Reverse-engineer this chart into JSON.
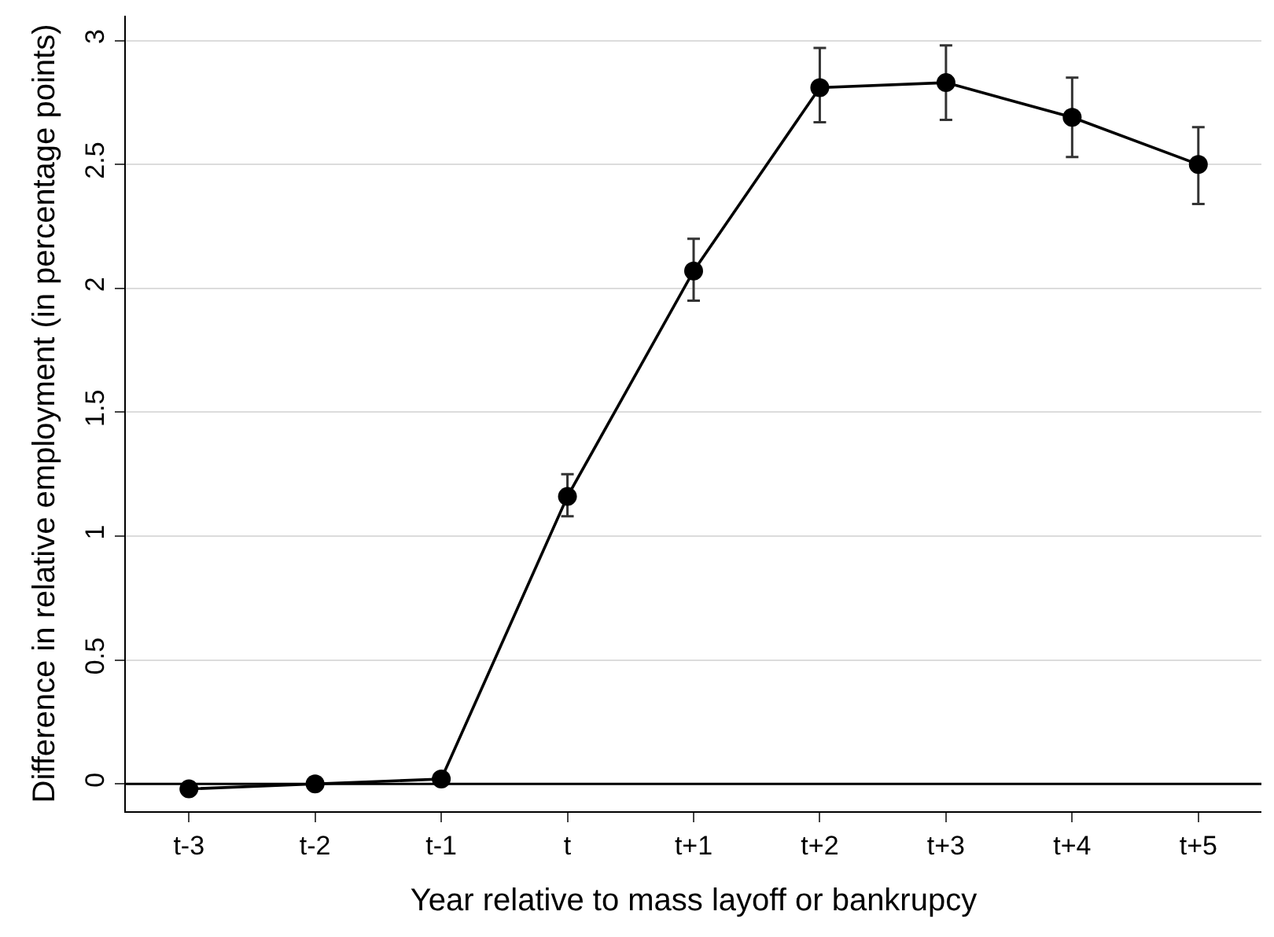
{
  "chart_data": {
    "type": "line",
    "xlabel": "Year relative to mass layoff or bankrupcy",
    "ylabel": "Difference in relative employment (in percentage points)",
    "categories": [
      "t-3",
      "t-2",
      "t-1",
      "t",
      "t+1",
      "t+2",
      "t+3",
      "t+4",
      "t+5"
    ],
    "series": [
      {
        "color": "#000000",
        "values": [
          -0.02,
          0,
          0.02,
          1.16,
          2.07,
          2.81,
          2.83,
          2.69,
          2.5
        ],
        "errors": [
          null,
          null,
          null,
          [
            1.08,
            1.25
          ],
          [
            1.95,
            2.2
          ],
          [
            2.67,
            2.97
          ],
          [
            2.68,
            2.98
          ],
          [
            2.53,
            2.85
          ],
          [
            2.34,
            2.65
          ]
        ]
      }
    ],
    "ylim": [
      -0.11,
      3.1
    ],
    "yticks": [
      0,
      0.5,
      1,
      1.5,
      2,
      2.5,
      3
    ],
    "grid": "y",
    "marker": "circle",
    "line_style": "solid",
    "ref_lines": [
      {
        "axis": "y",
        "value": 0,
        "color": "#000000"
      }
    ]
  }
}
